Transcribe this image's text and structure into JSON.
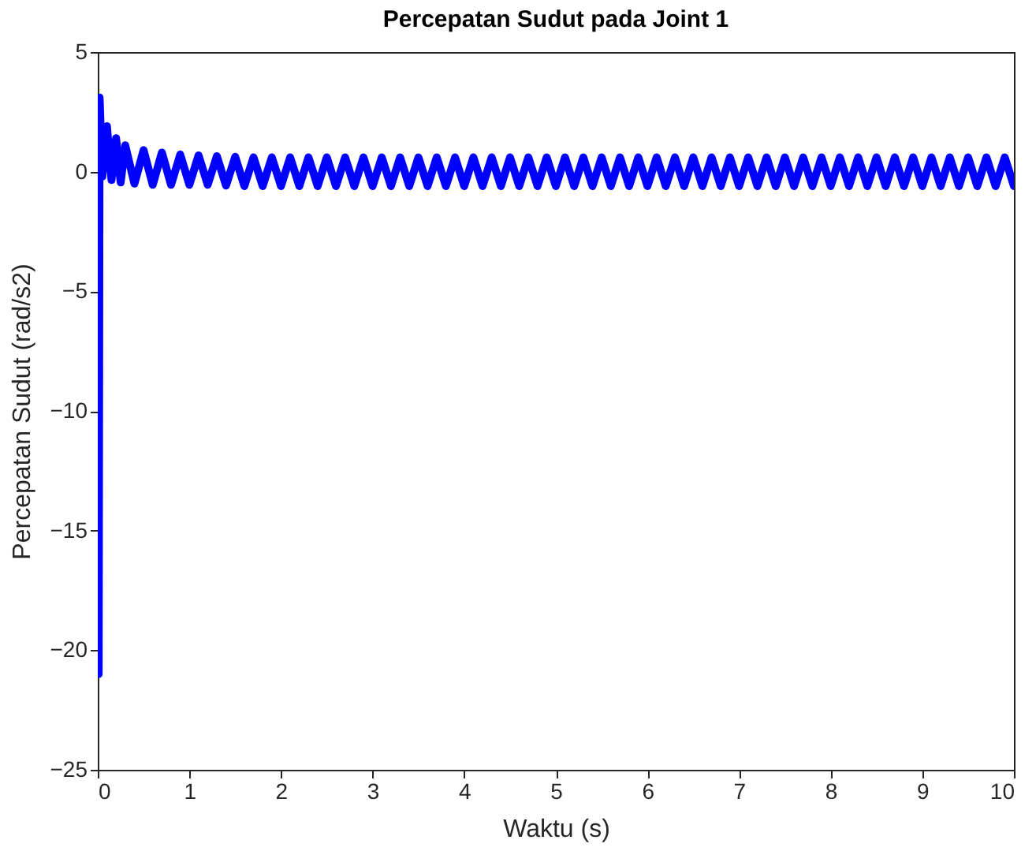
{
  "chart_data": {
    "type": "line",
    "title": "Percepatan Sudut pada Joint 1",
    "xlabel": "Waktu (s)",
    "ylabel": "Percepatan Sudut (rad/s2)",
    "xlim": [
      0,
      10
    ],
    "ylim": [
      -25,
      5
    ],
    "xticks": [
      0,
      1,
      2,
      3,
      4,
      5,
      6,
      7,
      8,
      9,
      10
    ],
    "yticks": [
      -25,
      -20,
      -15,
      -10,
      -5,
      0,
      5
    ],
    "grid": false,
    "series": [
      {
        "color": "#0000ff",
        "x": [
          0,
          0.01,
          0.02,
          0.05,
          0.1,
          0.15,
          0.2,
          0.25,
          0.3,
          0.4,
          0.5,
          0.6,
          0.7,
          0.8,
          0.9,
          1.0,
          1.1,
          1.2,
          1.3,
          1.4,
          1.5,
          1.6,
          1.7,
          1.8,
          1.9,
          2.0,
          2.1,
          2.2,
          2.3,
          2.4,
          2.5,
          2.6,
          2.7,
          2.8,
          2.9,
          3.0,
          3.1,
          3.2,
          3.3,
          3.4,
          3.5,
          3.6,
          3.7,
          3.8,
          3.9,
          4.0,
          4.1,
          4.2,
          4.3,
          4.4,
          4.5,
          4.6,
          4.7,
          4.8,
          4.9,
          5.0,
          5.1,
          5.2,
          5.3,
          5.4,
          5.5,
          5.6,
          5.7,
          5.8,
          5.9,
          6.0,
          6.1,
          6.2,
          6.3,
          6.4,
          6.5,
          6.6,
          6.7,
          6.8,
          6.9,
          7.0,
          7.1,
          7.2,
          7.3,
          7.4,
          7.5,
          7.6,
          7.7,
          7.8,
          7.9,
          8.0,
          8.1,
          8.2,
          8.3,
          8.4,
          8.5,
          8.6,
          8.7,
          8.8,
          8.9,
          9.0,
          9.1,
          9.2,
          9.3,
          9.4,
          9.5,
          9.6,
          9.7,
          9.8,
          9.9,
          10.0
        ],
        "values": [
          0,
          -21,
          3.1,
          -0.2,
          1.9,
          -0.35,
          1.4,
          -0.45,
          1.1,
          -0.5,
          0.9,
          -0.55,
          0.8,
          -0.55,
          0.72,
          -0.55,
          0.68,
          -0.55,
          0.65,
          -0.58,
          0.62,
          -0.6,
          0.6,
          -0.6,
          0.6,
          -0.6,
          0.6,
          -0.6,
          0.6,
          -0.6,
          0.6,
          -0.6,
          0.6,
          -0.6,
          0.6,
          -0.6,
          0.6,
          -0.6,
          0.6,
          -0.6,
          0.6,
          -0.6,
          0.6,
          -0.6,
          0.6,
          -0.6,
          0.6,
          -0.6,
          0.6,
          -0.6,
          0.6,
          -0.6,
          0.6,
          -0.6,
          0.6,
          -0.6,
          0.6,
          -0.6,
          0.6,
          -0.6,
          0.6,
          -0.6,
          0.6,
          -0.6,
          0.6,
          -0.6,
          0.6,
          -0.6,
          0.6,
          -0.6,
          0.6,
          -0.6,
          0.6,
          -0.6,
          0.6,
          -0.6,
          0.6,
          -0.6,
          0.6,
          -0.6,
          0.6,
          -0.6,
          0.6,
          -0.6,
          0.6,
          -0.6,
          0.6,
          -0.6,
          0.6,
          -0.6,
          0.6,
          -0.6,
          0.6,
          -0.6,
          0.6,
          -0.6,
          0.6,
          -0.6,
          0.6,
          -0.6,
          0.6,
          -0.6,
          0.6,
          -0.6,
          0.6,
          -0.6
        ]
      }
    ]
  }
}
